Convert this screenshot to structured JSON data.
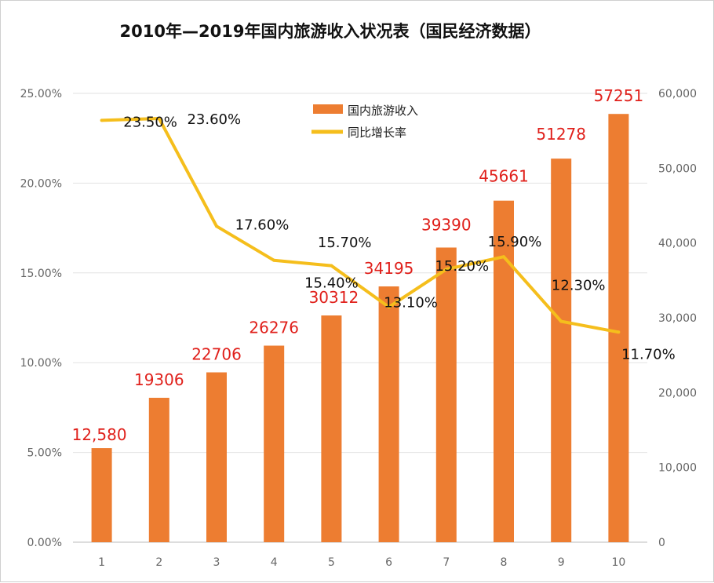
{
  "chart_data": {
    "type": "bar+line",
    "title": "2010年—2019年国内旅游收入状况表（国民经济数据）",
    "categories": [
      "1",
      "2",
      "3",
      "4",
      "5",
      "6",
      "7",
      "8",
      "9",
      "10"
    ],
    "series": [
      {
        "name": "国内旅游收入",
        "type": "bar",
        "axis": "right",
        "color": "#ED7D31",
        "values": [
          12580,
          19306,
          22706,
          26276,
          30312,
          34195,
          39390,
          45661,
          51278,
          57251
        ],
        "labels": [
          "12,580",
          "19306",
          "22706",
          "26276",
          "30312",
          "34195",
          "39390",
          "45661",
          "51278",
          "57251"
        ]
      },
      {
        "name": "同比增长率",
        "type": "line",
        "axis": "left",
        "color": "#F5BE1C",
        "values": [
          23.5,
          23.6,
          17.6,
          15.7,
          15.4,
          13.1,
          15.2,
          15.9,
          12.3,
          11.7
        ],
        "labels": [
          "23.50%",
          "23.60%",
          "17.60%",
          "15.70%",
          "15.40%",
          "13.10%",
          "15.20%",
          "15.90%",
          "12.30%",
          "11.70%"
        ]
      }
    ],
    "left_axis": {
      "range": [
        0,
        25
      ],
      "ticks": [
        "0.00%",
        "5.00%",
        "10.00%",
        "15.00%",
        "20.00%",
        "25.00%"
      ]
    },
    "right_axis": {
      "range": [
        0,
        60000
      ],
      "ticks": [
        "0",
        "10,000",
        "20,000",
        "30,000",
        "40,000",
        "50,000",
        "60,000"
      ]
    },
    "grid": true,
    "legend": "top-center",
    "bar_label_color": "#E0201B"
  }
}
